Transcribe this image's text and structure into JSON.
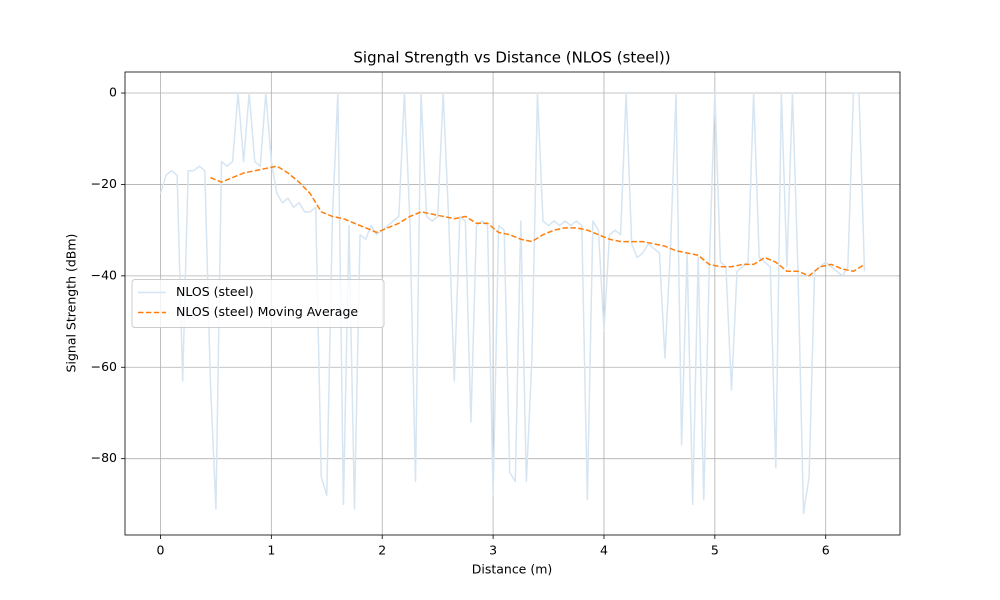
{
  "chart_data": {
    "type": "line",
    "title": "Signal Strength vs Distance (NLOS (steel))",
    "x_label": "Distance (m)",
    "y_label": "Signal Strength (dBm)",
    "xlim": [
      -0.32,
      6.67
    ],
    "ylim": [
      -96.7,
      4.6
    ],
    "xticks": [
      0,
      1,
      2,
      3,
      4,
      5,
      6
    ],
    "yticks": [
      {
        "value": -80,
        "label": "−80"
      },
      {
        "value": -60,
        "label": "−60"
      },
      {
        "value": -40,
        "label": "−40"
      },
      {
        "value": -20,
        "label": "−20"
      },
      0
    ],
    "grid": true,
    "legend": "center left",
    "series": [
      {
        "name": "NLOS (steel)",
        "color": "#d6e5f2",
        "dash": false,
        "x": [
          0,
          0.05,
          0.1,
          0.15,
          0.2,
          0.25,
          0.3,
          0.35,
          0.4,
          0.45,
          0.5,
          0.55,
          0.6,
          0.65,
          0.7,
          0.75,
          0.8,
          0.85,
          0.9,
          0.95,
          1,
          1.05,
          1.1,
          1.15,
          1.2,
          1.25,
          1.3,
          1.35,
          1.4,
          1.45,
          1.5,
          1.55,
          1.6,
          1.65,
          1.7,
          1.75,
          1.8,
          1.85,
          1.9,
          1.95,
          2,
          2.05,
          2.1,
          2.15,
          2.2,
          2.25,
          2.3,
          2.35,
          2.4,
          2.45,
          2.5,
          2.55,
          2.6,
          2.65,
          2.7,
          2.75,
          2.8,
          2.85,
          2.9,
          2.95,
          3,
          3.05,
          3.1,
          3.15,
          3.2,
          3.25,
          3.3,
          3.35,
          3.4,
          3.45,
          3.5,
          3.55,
          3.6,
          3.65,
          3.7,
          3.75,
          3.8,
          3.85,
          3.9,
          3.95,
          4,
          4.05,
          4.1,
          4.15,
          4.2,
          4.25,
          4.3,
          4.35,
          4.4,
          4.45,
          4.5,
          4.55,
          4.6,
          4.65,
          4.7,
          4.75,
          4.8,
          4.85,
          4.9,
          4.95,
          5,
          5.05,
          5.1,
          5.15,
          5.2,
          5.25,
          5.3,
          5.35,
          5.4,
          5.45,
          5.5,
          5.55,
          5.6,
          5.65,
          5.7,
          5.75,
          5.8,
          5.85,
          5.9,
          5.95,
          6,
          6.05,
          6.1,
          6.15,
          6.2,
          6.25,
          6.3,
          6.35
        ],
        "values": [
          -22,
          -18,
          -17,
          -18,
          -63,
          -17,
          -17,
          -16,
          -17,
          -63,
          -91,
          -15,
          -16,
          -15,
          0,
          -15,
          0,
          -15,
          -16,
          0,
          -15,
          -22,
          -24,
          -23,
          -25,
          -24,
          -26,
          -26,
          -25,
          -84,
          -88,
          -28,
          0,
          -90,
          -29,
          -91,
          -31,
          -32,
          -29,
          -31,
          -30,
          -29,
          -28,
          -27,
          0,
          -28,
          -85,
          0,
          -27,
          -28,
          -27,
          0,
          -28,
          -63,
          -27,
          -28,
          -72,
          -29,
          -28,
          -29,
          -88,
          -29,
          -30,
          -83,
          -85,
          -28,
          -85,
          -58,
          0,
          -28,
          -29,
          -28,
          -29,
          -28,
          -29,
          -28,
          -29,
          -89,
          -28,
          -30,
          -52,
          -31,
          -30,
          -31,
          0,
          -33,
          -36,
          -35,
          -33,
          -34,
          -35,
          -58,
          -34,
          0,
          -77,
          -35,
          -90,
          -36,
          -89,
          -38,
          0,
          -37,
          -38,
          -65,
          -39,
          -38,
          -37,
          0,
          -36,
          -37,
          -38,
          -82,
          0,
          -38,
          0,
          -39,
          -92,
          -84,
          -39,
          -38,
          -37,
          -38,
          -39,
          -40,
          -38,
          0,
          0,
          -39
        ]
      },
      {
        "name": "NLOS (steel) Moving Average",
        "color": "#ff7f0e",
        "dash": true,
        "x": [
          0.45,
          0.55,
          0.65,
          0.75,
          0.85,
          0.95,
          1.05,
          1.15,
          1.25,
          1.35,
          1.45,
          1.55,
          1.65,
          1.75,
          1.85,
          1.95,
          2.05,
          2.15,
          2.25,
          2.35,
          2.45,
          2.55,
          2.65,
          2.75,
          2.85,
          2.95,
          3.05,
          3.15,
          3.25,
          3.35,
          3.45,
          3.55,
          3.65,
          3.75,
          3.85,
          3.95,
          4.05,
          4.15,
          4.25,
          4.35,
          4.45,
          4.55,
          4.65,
          4.75,
          4.85,
          4.95,
          5.05,
          5.15,
          5.25,
          5.35,
          5.45,
          5.55,
          5.65,
          5.75,
          5.85,
          5.95,
          6.05,
          6.15,
          6.25,
          6.35
        ],
        "values": [
          -18.5,
          -19.5,
          -18.5,
          -17.5,
          -17,
          -16.5,
          -16,
          -17.5,
          -19.5,
          -22,
          -26,
          -27,
          -27.5,
          -28.5,
          -29.5,
          -30.5,
          -29.5,
          -28.5,
          -27,
          -26,
          -26.5,
          -27,
          -27.5,
          -27,
          -28.5,
          -28.5,
          -30.5,
          -31,
          -32,
          -32.5,
          -31,
          -30,
          -29.5,
          -29.5,
          -30,
          -31,
          -32,
          -32.5,
          -32.5,
          -32.5,
          -33,
          -33.5,
          -34.5,
          -35,
          -35.5,
          -37.5,
          -38,
          -38,
          -37.5,
          -37.5,
          -36,
          -37,
          -39,
          -39,
          -40,
          -38,
          -37.5,
          -38.5,
          -39,
          -37.5
        ]
      }
    ]
  }
}
